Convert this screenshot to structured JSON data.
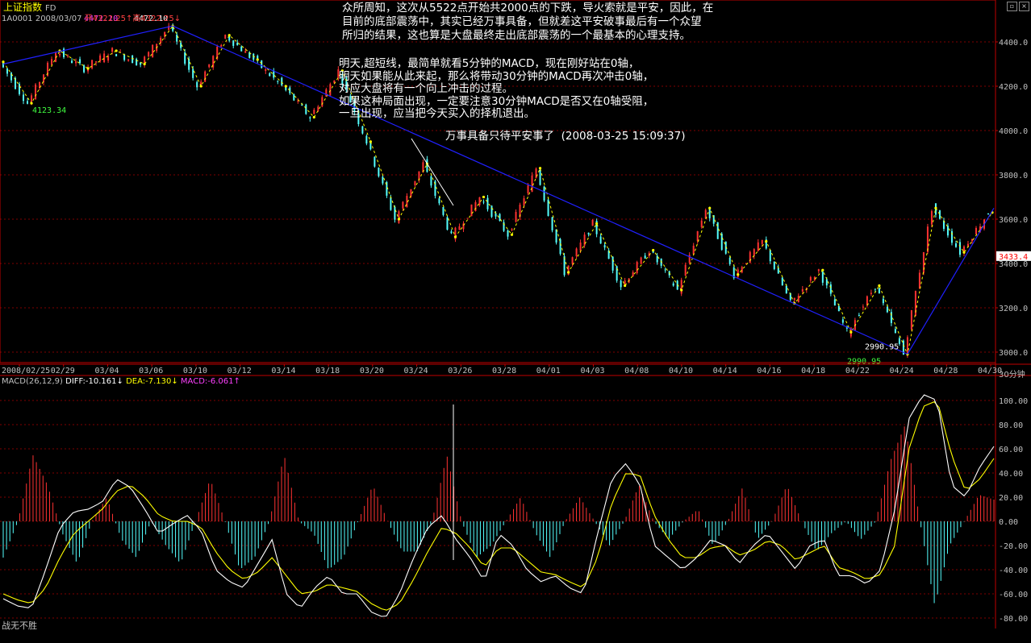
{
  "header": {
    "title": "上证指数",
    "title_suffix": "FD",
    "code_date": "1A0001 2008/03/07",
    "open_label": "开4322.25↑",
    "high_label": "高4322.25↓"
  },
  "annotation": {
    "line1": "众所周知，这次从5522点开始共2000点的下跌，导火索就是平安，因此，在",
    "line2": "目前的底部震荡中，其实已经万事具备，但就差这平安破事最后有一个众望",
    "line3": "所归的结果，这也算是大盘最终走出底部震荡的一个最基本的心理支持。",
    "line4": "明天,超短线，最简单就看5分钟的MACD，现在刚好站在0轴，",
    "line5": "明天如果能从此来起，那么将带动30分钟的MACD再次冲击0轴，",
    "line6": "对应大盘将有一个向上冲击的过程。",
    "line7": "如果这种局面出现，一定要注意30分钟MACD是否又在0轴受阻，",
    "line8": "一旦出现，应当把今天买入的择机退出。",
    "line9": "万事具备只待平安事了  (2008-03-25 15:09:37)"
  },
  "macd_header": {
    "label": "MACD(26,12,9)",
    "diff": "DIFF:-10.161↓",
    "dea": "DEA:-7.130↓",
    "macd": "MACD:-6.061↑"
  },
  "period": "30分钟",
  "footer": "战无不胜",
  "current_price": "3433.4",
  "colors": {
    "up": "#ff3232",
    "down": "#54ffff",
    "trendline": "#2020ff",
    "zigzag": "#ffff00",
    "diff": "#ffffff",
    "dea": "#ffff00",
    "grid": "#800000",
    "axis": "#c00000"
  },
  "chart_data": [
    {
      "type": "candlestick",
      "title": "上证指数",
      "x_ticks": [
        "2008/02/25",
        "02/29",
        "03/04",
        "03/06",
        "03/10",
        "03/12",
        "03/14",
        "03/18",
        "03/20",
        "03/24",
        "03/26",
        "03/28",
        "04/01",
        "04/03",
        "04/08",
        "04/10",
        "04/14",
        "04/16",
        "04/18",
        "04/22",
        "04/24",
        "04/28",
        "04/30"
      ],
      "y_ticks": [
        3000,
        3200,
        3400,
        3600,
        3800,
        4000,
        4200,
        4400
      ],
      "ylim": [
        2990,
        4470
      ],
      "labeled_points": [
        {
          "label": "4123.34",
          "value": 4123.34
        },
        {
          "label": "4472.10",
          "value": 4472.1
        },
        {
          "label": "4472.10",
          "value": 4472.1
        },
        {
          "label": "2990.95",
          "value": 2990.95
        },
        {
          "label": "2990.95",
          "value": 2990.95
        }
      ],
      "zigzag_pivots": [
        4310,
        4123,
        4360,
        4280,
        4360,
        4300,
        4472,
        4200,
        4430,
        4320,
        4200,
        4060,
        4270,
        3950,
        3600,
        3850,
        3520,
        3700,
        3530,
        3830,
        3360,
        3580,
        3300,
        3460,
        3280,
        3650,
        3350,
        3500,
        3220,
        3370,
        3090,
        3300,
        2990,
        3650,
        3450,
        3630
      ],
      "trendline_down": {
        "from": 4472.1,
        "to": 2990.95
      },
      "trendline_up": {
        "from": 2990.95,
        "to": 3650
      },
      "current_price": 3433.4
    },
    {
      "type": "bar_line",
      "title": "MACD(26,12,9)",
      "y_ticks": [
        -80.0,
        -60.0,
        -40.0,
        -20.0,
        0.0,
        20.0,
        40.0,
        60.0,
        80.0,
        100.0
      ],
      "ylim": [
        -85,
        110
      ],
      "diff_last": -10.161,
      "dea_last": -7.13,
      "macd_last": -6.061,
      "diff_key": [
        -64,
        -70,
        -72,
        -40,
        -5,
        8,
        10,
        16,
        35,
        28,
        10,
        -10,
        -2,
        5,
        -8,
        -40,
        -50,
        -55,
        -35,
        -15,
        -60,
        -72,
        -55,
        -45,
        -60,
        -60,
        -75,
        -80,
        -60,
        -30,
        -5,
        5,
        -15,
        -30,
        -50,
        -10,
        -20,
        -40,
        -50,
        -45,
        -55,
        -60,
        -10,
        35,
        48,
        30,
        -20,
        -30,
        -40,
        -30,
        -15,
        -20,
        -35,
        -20,
        -10,
        -25,
        -40,
        -20,
        -15,
        -45,
        -45,
        -52,
        -40,
        10,
        85,
        105,
        100,
        30,
        20,
        45,
        62
      ],
      "dea_key": [
        -60,
        -65,
        -68,
        -55,
        -30,
        -10,
        0,
        10,
        25,
        30,
        20,
        5,
        0,
        0,
        -5,
        -25,
        -40,
        -48,
        -42,
        -30,
        -45,
        -60,
        -58,
        -52,
        -55,
        -58,
        -68,
        -74,
        -68,
        -48,
        -25,
        -5,
        -10,
        -22,
        -38,
        -22,
        -22,
        -32,
        -42,
        -44,
        -50,
        -55,
        -30,
        15,
        40,
        38,
        5,
        -15,
        -30,
        -30,
        -22,
        -20,
        -28,
        -24,
        -16,
        -20,
        -32,
        -26,
        -20,
        -38,
        -42,
        -48,
        -44,
        -20,
        60,
        95,
        100,
        55,
        25,
        35,
        52
      ],
      "macd_key": [
        -30,
        0,
        55,
        30,
        -10,
        -35,
        0,
        20,
        -15,
        -30,
        0,
        -20,
        -35,
        0,
        35,
        0,
        -40,
        -30,
        0,
        55,
        0,
        -10,
        -40,
        -30,
        0,
        30,
        0,
        -25,
        -25,
        0,
        55,
        0,
        -30,
        -20,
        0,
        20,
        -10,
        -30,
        0,
        20,
        0,
        -20,
        0,
        30,
        0,
        -15,
        0,
        10,
        -20,
        0,
        28,
        -15,
        0,
        30,
        0,
        -25,
        -10,
        0,
        -15,
        0,
        50,
        80,
        0,
        -70,
        -20,
        0,
        22,
        18
      ]
    }
  ]
}
